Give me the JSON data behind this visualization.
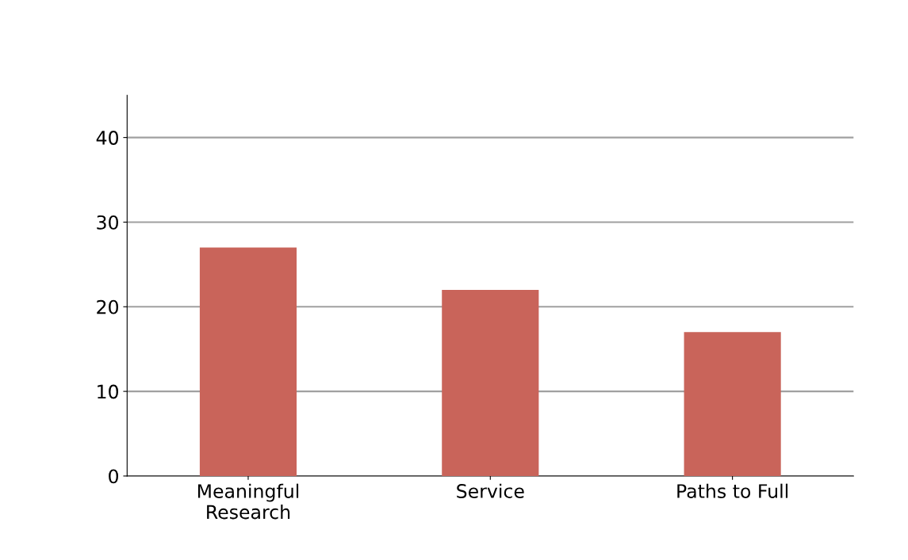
{
  "chart_data": {
    "type": "bar",
    "categories": [
      "Meaningful\nResearch",
      "Service",
      "Paths to Full"
    ],
    "values": [
      27,
      22,
      17
    ],
    "color": "#c9645a",
    "ylim": [
      0,
      45
    ],
    "yticks": [
      0,
      10,
      20,
      30,
      40
    ],
    "grid": "y"
  }
}
